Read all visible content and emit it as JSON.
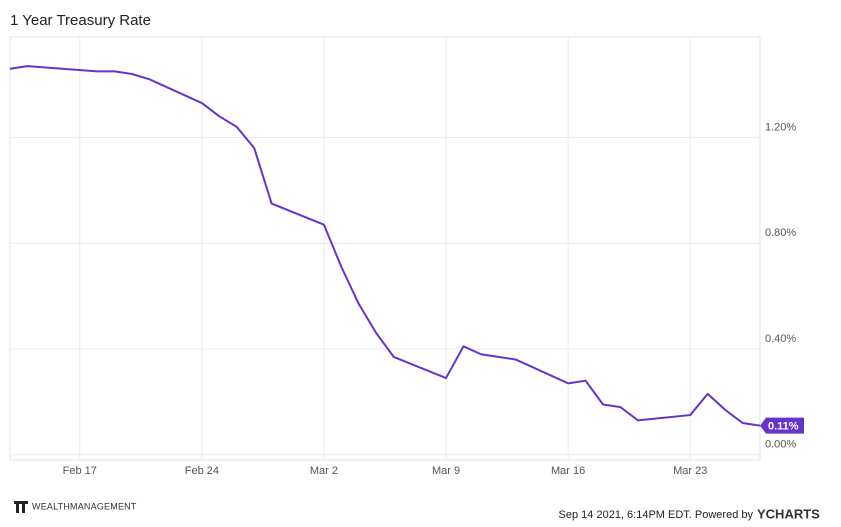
{
  "chart_data": {
    "type": "line",
    "title": "1 Year Treasury Rate",
    "x": [
      "Feb 13",
      "Feb 14",
      "Feb 18",
      "Feb 19",
      "Feb 20",
      "Feb 21",
      "Feb 24",
      "Feb 25",
      "Feb 26",
      "Feb 27",
      "Feb 28",
      "Mar 2",
      "Mar 3",
      "Mar 4",
      "Mar 5",
      "Mar 6",
      "Mar 9",
      "Mar 10",
      "Mar 11",
      "Mar 12",
      "Mar 13",
      "Mar 16",
      "Mar 17",
      "Mar 18",
      "Mar 19",
      "Mar 20",
      "Mar 23",
      "Mar 24",
      "Mar 25",
      "Mar 26",
      "Mar 27"
    ],
    "series": [
      {
        "name": "1 Year Treasury Rate",
        "color": "#6633cc",
        "values": [
          1.46,
          1.47,
          1.45,
          1.45,
          1.44,
          1.42,
          1.33,
          1.28,
          1.24,
          1.16,
          0.95,
          0.87,
          0.71,
          0.57,
          0.46,
          0.37,
          0.29,
          0.41,
          0.38,
          0.37,
          0.36,
          0.27,
          0.28,
          0.19,
          0.18,
          0.13,
          0.15,
          0.23,
          0.17,
          0.12,
          0.11
        ]
      }
    ],
    "end_label": "0.11%",
    "xlim": [
      "Feb 13",
      "Mar 27"
    ],
    "xticks": [
      "Feb 17",
      "Feb 24",
      "Mar 2",
      "Mar 9",
      "Mar 16",
      "Mar 23"
    ],
    "ylim": [
      -0.02,
      1.58
    ],
    "yticks": [
      {
        "value": 0,
        "label": "0.00%"
      },
      {
        "value": 0.4,
        "label": "0.40%"
      },
      {
        "value": 0.8,
        "label": "0.80%"
      },
      {
        "value": 1.2,
        "label": "1.20%"
      }
    ],
    "grid": true
  },
  "footer": {
    "logo_text": "WEALTHMANAGEMENT",
    "timestamp": "Sep 14 2021, 6:14PM EDT. Powered by",
    "brand": "YCHARTS"
  }
}
